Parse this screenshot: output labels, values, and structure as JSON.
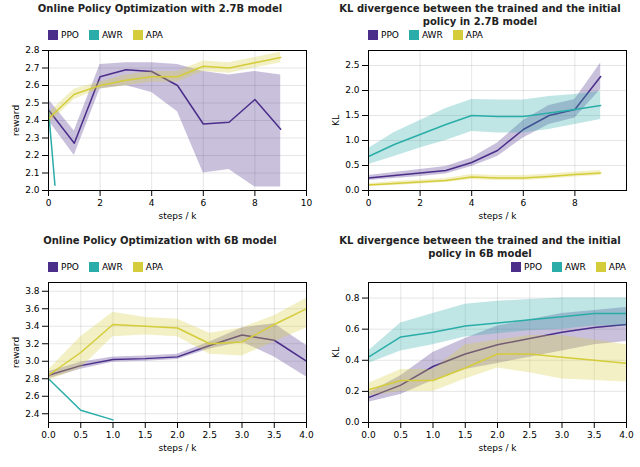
{
  "chart_data": [
    {
      "type": "line",
      "title": "Online Policy Optimization with 2.7B model",
      "xlabel": "steps / k",
      "ylabel": "reward",
      "xlim": [
        0,
        10
      ],
      "ylim": [
        2.0,
        2.8
      ],
      "xticks": [
        0,
        2,
        4,
        6,
        8,
        10
      ],
      "yticks": [
        {
          "value": 2.0,
          "label": "2.0"
        },
        2.1,
        2.2,
        2.3,
        2.4,
        2.5,
        2.6,
        2.7,
        2.8
      ],
      "grid": true,
      "legend": "upper left",
      "series": [
        {
          "name": "PPO",
          "color": "#4b2d8a",
          "x": [
            0,
            1,
            2,
            3,
            4,
            5,
            6,
            7,
            8,
            9
          ],
          "values": [
            2.46,
            2.27,
            2.65,
            2.69,
            2.68,
            2.6,
            2.38,
            2.39,
            2.52,
            2.35
          ],
          "lower": [
            2.4,
            2.2,
            2.58,
            2.6,
            2.56,
            2.45,
            2.1,
            2.12,
            2.02,
            2.02
          ],
          "upper": [
            2.52,
            2.34,
            2.72,
            2.73,
            2.73,
            2.72,
            2.68,
            2.66,
            2.68,
            2.66
          ]
        },
        {
          "name": "AWR",
          "color": "#2aada8",
          "x": [
            0,
            0.25
          ],
          "values": [
            2.46,
            2.03
          ],
          "lower": [
            2.46,
            2.03
          ],
          "upper": [
            2.46,
            2.03
          ]
        },
        {
          "name": "APA",
          "color": "#d4cc3a",
          "x": [
            0,
            1,
            2,
            3,
            4,
            5,
            6,
            7,
            8,
            9
          ],
          "values": [
            2.41,
            2.55,
            2.6,
            2.63,
            2.65,
            2.65,
            2.71,
            2.7,
            2.73,
            2.76
          ],
          "lower": [
            2.38,
            2.52,
            2.58,
            2.6,
            2.62,
            2.62,
            2.68,
            2.67,
            2.7,
            2.73
          ],
          "upper": [
            2.44,
            2.58,
            2.62,
            2.66,
            2.68,
            2.68,
            2.74,
            2.73,
            2.76,
            2.79
          ]
        }
      ]
    },
    {
      "type": "line",
      "title": "KL divergence between the trained and the initial policy in 2.7B model",
      "xlabel": "steps / k",
      "ylabel": "KL",
      "xlim": [
        0,
        10
      ],
      "ylim": [
        0.0,
        2.8
      ],
      "xticks": [
        0,
        2,
        4,
        6,
        8
      ],
      "yticks": [
        {
          "value": 0.0,
          "label": "0.0"
        },
        0.5,
        {
          "value": 1.0,
          "label": "1.0"
        },
        1.5,
        {
          "value": 2.0,
          "label": "2.0"
        },
        2.5
      ],
      "grid": true,
      "legend": "upper left",
      "series": [
        {
          "name": "PPO",
          "color": "#4b2d8a",
          "x": [
            0,
            1,
            2,
            3,
            4,
            5,
            6,
            7,
            8,
            9
          ],
          "values": [
            0.25,
            0.3,
            0.35,
            0.4,
            0.56,
            0.8,
            1.22,
            1.5,
            1.62,
            2.28
          ],
          "lower": [
            0.2,
            0.24,
            0.28,
            0.33,
            0.48,
            0.68,
            1.05,
            1.32,
            1.45,
            2.02
          ],
          "upper": [
            0.3,
            0.36,
            0.42,
            0.48,
            0.65,
            0.95,
            1.4,
            1.7,
            1.82,
            2.55
          ]
        },
        {
          "name": "AWR",
          "color": "#2aada8",
          "x": [
            0,
            1,
            2,
            3,
            4,
            5,
            6,
            7,
            8,
            9
          ],
          "values": [
            0.68,
            0.92,
            1.12,
            1.32,
            1.5,
            1.48,
            1.48,
            1.55,
            1.62,
            1.7
          ],
          "lower": [
            0.52,
            0.68,
            0.85,
            1.0,
            1.18,
            1.15,
            1.15,
            1.22,
            1.32,
            1.42
          ],
          "upper": [
            0.84,
            1.16,
            1.4,
            1.64,
            1.82,
            1.81,
            1.81,
            1.88,
            1.92,
            1.98
          ]
        },
        {
          "name": "APA",
          "color": "#d4cc3a",
          "x": [
            0,
            1,
            2,
            3,
            4,
            5,
            6,
            7,
            8,
            9
          ],
          "values": [
            0.11,
            0.14,
            0.17,
            0.2,
            0.27,
            0.25,
            0.25,
            0.28,
            0.32,
            0.35
          ],
          "lower": [
            0.08,
            0.1,
            0.13,
            0.16,
            0.22,
            0.2,
            0.2,
            0.23,
            0.27,
            0.3
          ],
          "upper": [
            0.14,
            0.18,
            0.21,
            0.24,
            0.32,
            0.3,
            0.3,
            0.33,
            0.37,
            0.4
          ]
        }
      ]
    },
    {
      "type": "line",
      "title": "Online Policy Optimization with 6B model",
      "xlabel": "steps / k",
      "ylabel": "reward",
      "xlim": [
        0,
        4
      ],
      "ylim": [
        2.3,
        3.9
      ],
      "xticks": [
        {
          "value": 0.0,
          "label": "0.0"
        },
        0.5,
        {
          "value": 1.0,
          "label": "1.0"
        },
        1.5,
        {
          "value": 2.0,
          "label": "2.0"
        },
        2.5,
        {
          "value": 3.0,
          "label": "3.0"
        },
        3.5,
        {
          "value": 4.0,
          "label": "4.0"
        }
      ],
      "yticks": [
        2.4,
        2.6,
        2.8,
        {
          "value": 3.0,
          "label": "3.0"
        },
        3.2,
        3.4,
        3.6,
        3.8
      ],
      "grid": true,
      "legend": "upper left",
      "series": [
        {
          "name": "PPO",
          "color": "#4b2d8a",
          "x": [
            0,
            0.5,
            1.0,
            1.5,
            2.0,
            2.5,
            3.0,
            3.5,
            4.0
          ],
          "values": [
            2.84,
            2.95,
            3.02,
            3.03,
            3.05,
            3.18,
            3.3,
            3.24,
            3.0
          ],
          "lower": [
            2.8,
            2.91,
            2.99,
            3.0,
            3.02,
            3.14,
            3.22,
            3.05,
            2.82
          ],
          "upper": [
            2.88,
            2.99,
            3.05,
            3.06,
            3.08,
            3.22,
            3.38,
            3.43,
            3.18
          ]
        },
        {
          "name": "AWR",
          "color": "#2aada8",
          "x": [
            0,
            0.5,
            1.0
          ],
          "values": [
            2.8,
            2.44,
            2.33
          ],
          "lower": [
            2.8,
            2.44,
            2.33
          ],
          "upper": [
            2.8,
            2.44,
            2.33
          ]
        },
        {
          "name": "APA",
          "color": "#d4cc3a",
          "x": [
            0,
            0.5,
            1.0,
            1.5,
            2.0,
            2.5,
            3.0,
            3.5,
            4.0
          ],
          "values": [
            2.84,
            3.1,
            3.42,
            3.4,
            3.38,
            3.2,
            3.22,
            3.42,
            3.6
          ],
          "lower": [
            2.78,
            2.92,
            3.28,
            3.3,
            3.28,
            3.08,
            3.06,
            3.22,
            3.38
          ],
          "upper": [
            2.9,
            3.28,
            3.56,
            3.5,
            3.48,
            3.32,
            3.38,
            3.52,
            3.72
          ]
        }
      ]
    },
    {
      "type": "line",
      "title": "KL divergence between the trained and the initial policy in 6B model",
      "xlabel": "steps / k",
      "ylabel": "KL",
      "xlim": [
        0,
        4
      ],
      "ylim": [
        0.0,
        0.9
      ],
      "xticks": [
        {
          "value": 0.0,
          "label": "0.0"
        },
        0.5,
        {
          "value": 1.0,
          "label": "1.0"
        },
        1.5,
        {
          "value": 2.0,
          "label": "2.0"
        },
        2.5,
        {
          "value": 3.0,
          "label": "3.0"
        },
        3.5,
        {
          "value": 4.0,
          "label": "4.0"
        }
      ],
      "yticks": [
        {
          "value": 0.0,
          "label": "0.0"
        },
        0.2,
        0.4,
        0.6,
        0.8
      ],
      "grid": true,
      "legend": "upper right",
      "series": [
        {
          "name": "PPO",
          "color": "#4b2d8a",
          "x": [
            0,
            0.5,
            1.0,
            1.5,
            2.0,
            2.5,
            3.0,
            3.5,
            4.0
          ],
          "values": [
            0.16,
            0.24,
            0.36,
            0.44,
            0.5,
            0.54,
            0.58,
            0.61,
            0.63
          ],
          "lower": [
            0.13,
            0.18,
            0.27,
            0.34,
            0.38,
            0.42,
            0.46,
            0.5,
            0.52
          ],
          "upper": [
            0.19,
            0.3,
            0.45,
            0.54,
            0.62,
            0.66,
            0.7,
            0.72,
            0.74
          ]
        },
        {
          "name": "AWR",
          "color": "#2aada8",
          "x": [
            0,
            0.5,
            1.0,
            1.5,
            2.0,
            2.5,
            3.0,
            3.5,
            4.0
          ],
          "values": [
            0.42,
            0.55,
            0.58,
            0.62,
            0.64,
            0.66,
            0.68,
            0.7,
            0.7
          ],
          "lower": [
            0.38,
            0.46,
            0.5,
            0.55,
            0.57,
            0.59,
            0.6,
            0.62,
            0.62
          ],
          "upper": [
            0.46,
            0.64,
            0.7,
            0.76,
            0.78,
            0.79,
            0.8,
            0.8,
            0.8
          ]
        },
        {
          "name": "APA",
          "color": "#d4cc3a",
          "x": [
            0,
            0.5,
            1.0,
            1.5,
            2.0,
            2.5,
            3.0,
            3.5,
            4.0
          ],
          "values": [
            0.21,
            0.27,
            0.27,
            0.35,
            0.44,
            0.44,
            0.42,
            0.4,
            0.38
          ],
          "lower": [
            0.17,
            0.2,
            0.2,
            0.28,
            0.35,
            0.32,
            0.28,
            0.27,
            0.26
          ],
          "upper": [
            0.25,
            0.34,
            0.34,
            0.5,
            0.53,
            0.56,
            0.56,
            0.53,
            0.5
          ]
        }
      ]
    }
  ]
}
